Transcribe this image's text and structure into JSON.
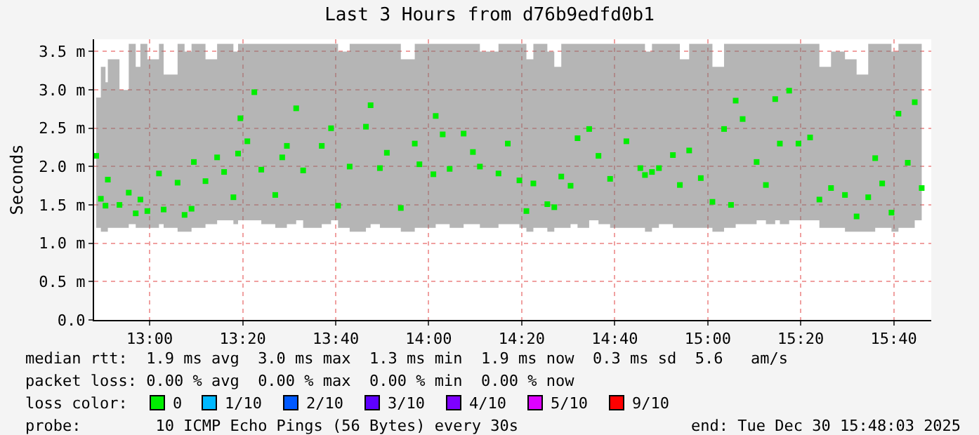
{
  "chart_data": {
    "type": "scatter",
    "title": "Last 3 Hours from d76b9edfd0b1",
    "ylabel": "Seconds",
    "legend_title": "loss color:",
    "legend": "bottom",
    "grid": true,
    "marker": "square",
    "xlim": [
      "2025-12-30T12:48:03",
      "2025-12-30T15:48:03"
    ],
    "ylim": [
      0,
      3.66
    ],
    "xticks": [
      {
        "value": "2025-12-30T13:00",
        "label": "13:00"
      },
      {
        "value": "2025-12-30T13:20",
        "label": "13:20"
      },
      {
        "value": "2025-12-30T13:40",
        "label": "13:40"
      },
      {
        "value": "2025-12-30T14:00",
        "label": "14:00"
      },
      {
        "value": "2025-12-30T14:20",
        "label": "14:20"
      },
      {
        "value": "2025-12-30T14:40",
        "label": "14:40"
      },
      {
        "value": "2025-12-30T15:00",
        "label": "15:00"
      },
      {
        "value": "2025-12-30T15:20",
        "label": "15:20"
      },
      {
        "value": "2025-12-30T15:40",
        "label": "15:40"
      }
    ],
    "yticks": [
      {
        "value": 0,
        "label": "0.0"
      },
      {
        "value": 0.5,
        "label": "0.5 m"
      },
      {
        "value": 1.0,
        "label": "1.0 m"
      },
      {
        "value": 1.5,
        "label": "1.5 m"
      },
      {
        "value": 2.0,
        "label": "2.0 m"
      },
      {
        "value": 2.5,
        "label": "2.5 m"
      },
      {
        "value": 3.0,
        "label": "3.0 m"
      },
      {
        "value": 3.5,
        "label": "3.5 m"
      }
    ],
    "x": [
      "2025-12-30T12:48:30",
      "2025-12-30T12:49:30",
      "2025-12-30T12:50:30",
      "2025-12-30T12:51:00",
      "2025-12-30T12:53:30",
      "2025-12-30T12:55:30",
      "2025-12-30T12:57:00",
      "2025-12-30T12:58:00",
      "2025-12-30T12:59:30",
      "2025-12-30T13:02:00",
      "2025-12-30T13:03:00",
      "2025-12-30T13:06:00",
      "2025-12-30T13:07:30",
      "2025-12-30T13:09:00",
      "2025-12-30T13:09:30",
      "2025-12-30T13:12:00",
      "2025-12-30T13:14:30",
      "2025-12-30T13:16:00",
      "2025-12-30T13:18:00",
      "2025-12-30T13:19:00",
      "2025-12-30T13:19:30",
      "2025-12-30T13:21:00",
      "2025-12-30T13:22:30",
      "2025-12-30T13:24:00",
      "2025-12-30T13:27:00",
      "2025-12-30T13:28:30",
      "2025-12-30T13:29:30",
      "2025-12-30T13:31:30",
      "2025-12-30T13:33:00",
      "2025-12-30T13:37:00",
      "2025-12-30T13:39:00",
      "2025-12-30T13:40:30",
      "2025-12-30T13:43:00",
      "2025-12-30T13:46:30",
      "2025-12-30T13:47:30",
      "2025-12-30T13:49:30",
      "2025-12-30T13:51:00",
      "2025-12-30T13:54:00",
      "2025-12-30T13:57:00",
      "2025-12-30T13:58:00",
      "2025-12-30T14:01:00",
      "2025-12-30T14:01:30",
      "2025-12-30T14:03:00",
      "2025-12-30T14:04:30",
      "2025-12-30T14:07:30",
      "2025-12-30T14:09:30",
      "2025-12-30T14:11:00",
      "2025-12-30T14:15:00",
      "2025-12-30T14:17:00",
      "2025-12-30T14:19:30",
      "2025-12-30T14:21:00",
      "2025-12-30T14:22:30",
      "2025-12-30T14:25:30",
      "2025-12-30T14:27:00",
      "2025-12-30T14:28:30",
      "2025-12-30T14:30:30",
      "2025-12-30T14:32:00",
      "2025-12-30T14:34:30",
      "2025-12-30T14:36:30",
      "2025-12-30T14:39:00",
      "2025-12-30T14:42:30",
      "2025-12-30T14:45:30",
      "2025-12-30T14:46:30",
      "2025-12-30T14:48:00",
      "2025-12-30T14:49:30",
      "2025-12-30T14:52:30",
      "2025-12-30T14:54:00",
      "2025-12-30T14:56:00",
      "2025-12-30T14:58:30",
      "2025-12-30T15:01:00",
      "2025-12-30T15:03:30",
      "2025-12-30T15:05:00",
      "2025-12-30T15:06:00",
      "2025-12-30T15:07:30",
      "2025-12-30T15:10:30",
      "2025-12-30T15:12:30",
      "2025-12-30T15:14:30",
      "2025-12-30T15:15:30",
      "2025-12-30T15:17:30",
      "2025-12-30T15:19:30",
      "2025-12-30T15:22:00",
      "2025-12-30T15:24:00",
      "2025-12-30T15:26:30",
      "2025-12-30T15:29:30",
      "2025-12-30T15:32:00",
      "2025-12-30T15:34:30",
      "2025-12-30T15:36:00",
      "2025-12-30T15:37:30",
      "2025-12-30T15:39:30",
      "2025-12-30T15:41:00",
      "2025-12-30T15:43:00",
      "2025-12-30T15:44:30",
      "2025-12-30T15:46:00"
    ],
    "series": [
      {
        "name": "0",
        "color": "#00ee00",
        "values": [
          2.14,
          1.58,
          1.49,
          1.83,
          1.5,
          1.66,
          1.39,
          1.57,
          1.42,
          1.91,
          1.44,
          1.79,
          1.37,
          1.45,
          2.06,
          1.81,
          2.12,
          1.93,
          1.6,
          2.17,
          2.63,
          2.33,
          2.97,
          1.96,
          1.63,
          2.12,
          2.27,
          2.76,
          1.95,
          2.27,
          2.5,
          1.49,
          2.0,
          2.52,
          2.8,
          1.98,
          2.18,
          1.46,
          2.3,
          2.03,
          1.9,
          2.66,
          2.42,
          1.97,
          2.43,
          2.19,
          2.0,
          1.91,
          2.3,
          1.82,
          1.42,
          1.78,
          1.51,
          1.47,
          1.87,
          1.75,
          2.37,
          2.49,
          2.14,
          1.84,
          2.33,
          1.98,
          1.89,
          1.93,
          1.98,
          2.15,
          1.76,
          2.21,
          1.85,
          1.54,
          2.49,
          1.5,
          2.86,
          2.62,
          2.06,
          1.76,
          2.88,
          2.3,
          2.99,
          2.3,
          2.38,
          1.57,
          1.72,
          1.63,
          1.35,
          1.6,
          2.11,
          1.78,
          1.4,
          2.69,
          2.05,
          2.84,
          1.72
        ],
        "lower": [
          1.2,
          1.15,
          1.15,
          1.2,
          1.2,
          1.25,
          1.2,
          1.2,
          1.2,
          1.25,
          1.2,
          1.15,
          1.15,
          1.2,
          1.2,
          1.25,
          1.3,
          1.3,
          1.25,
          1.3,
          1.3,
          1.3,
          1.3,
          1.25,
          1.2,
          1.2,
          1.25,
          1.3,
          1.2,
          1.25,
          1.3,
          1.2,
          1.15,
          1.2,
          1.25,
          1.2,
          1.2,
          1.15,
          1.2,
          1.2,
          1.2,
          1.25,
          1.25,
          1.2,
          1.25,
          1.25,
          1.2,
          1.25,
          1.25,
          1.2,
          1.15,
          1.2,
          1.15,
          1.2,
          1.2,
          1.25,
          1.2,
          1.3,
          1.25,
          1.2,
          1.2,
          1.2,
          1.15,
          1.2,
          1.25,
          1.2,
          1.2,
          1.2,
          1.2,
          1.15,
          1.2,
          1.2,
          1.25,
          1.25,
          1.3,
          1.25,
          1.3,
          1.25,
          1.3,
          1.3,
          1.3,
          1.2,
          1.2,
          1.15,
          1.15,
          1.15,
          1.2,
          1.2,
          1.15,
          1.2,
          1.2,
          1.3,
          1.25
        ],
        "upper": [
          2.9,
          3.3,
          3.1,
          3.4,
          3.0,
          3.6,
          3.3,
          3.6,
          3.4,
          3.6,
          3.2,
          3.6,
          3.5,
          3.6,
          3.6,
          3.4,
          3.6,
          3.6,
          3.5,
          3.6,
          3.6,
          3.6,
          3.6,
          3.6,
          3.6,
          3.6,
          3.6,
          3.6,
          3.6,
          3.6,
          3.6,
          3.5,
          3.6,
          3.6,
          3.6,
          3.6,
          3.6,
          3.4,
          3.6,
          3.6,
          3.6,
          3.6,
          3.6,
          3.6,
          3.6,
          3.6,
          3.5,
          3.6,
          3.6,
          3.6,
          3.4,
          3.6,
          3.5,
          3.3,
          3.6,
          3.6,
          3.6,
          3.6,
          3.6,
          3.6,
          3.6,
          3.6,
          3.5,
          3.6,
          3.6,
          3.6,
          3.4,
          3.6,
          3.6,
          3.3,
          3.6,
          3.6,
          3.6,
          3.6,
          3.6,
          3.6,
          3.6,
          3.6,
          3.6,
          3.6,
          3.6,
          3.3,
          3.5,
          3.4,
          3.2,
          3.6,
          3.6,
          3.6,
          3.5,
          3.6,
          3.6,
          3.6,
          3.3
        ]
      },
      {
        "name": "1/10",
        "color": "#00b8ff",
        "values": [
          null,
          null,
          null,
          null,
          null,
          null,
          null,
          null,
          null,
          null,
          null,
          null,
          null,
          null,
          null,
          null,
          null,
          null,
          null,
          null,
          null,
          null,
          null,
          null,
          null,
          null,
          null,
          null,
          null,
          null,
          null,
          null,
          null,
          null,
          null,
          null,
          null,
          null,
          null,
          null,
          null,
          null,
          null,
          null,
          null,
          null,
          null,
          null,
          null,
          null,
          null,
          null,
          null,
          null,
          null,
          null,
          null,
          null,
          null,
          null,
          null,
          null,
          null,
          null,
          null,
          null,
          null,
          null,
          null,
          null,
          null,
          null,
          null,
          null,
          null,
          null,
          null,
          null,
          null,
          null,
          null,
          null,
          null,
          null,
          null,
          null,
          null,
          null,
          null,
          null,
          null,
          null,
          null
        ]
      },
      {
        "name": "2/10",
        "color": "#0059ff",
        "values": [
          null,
          null,
          null,
          null,
          null,
          null,
          null,
          null,
          null,
          null,
          null,
          null,
          null,
          null,
          null,
          null,
          null,
          null,
          null,
          null,
          null,
          null,
          null,
          null,
          null,
          null,
          null,
          null,
          null,
          null,
          null,
          null,
          null,
          null,
          null,
          null,
          null,
          null,
          null,
          null,
          null,
          null,
          null,
          null,
          null,
          null,
          null,
          null,
          null,
          null,
          null,
          null,
          null,
          null,
          null,
          null,
          null,
          null,
          null,
          null,
          null,
          null,
          null,
          null,
          null,
          null,
          null,
          null,
          null,
          null,
          null,
          null,
          null,
          null,
          null,
          null,
          null,
          null,
          null,
          null,
          null,
          null,
          null,
          null,
          null,
          null,
          null,
          null,
          null,
          null,
          null,
          null,
          null
        ]
      },
      {
        "name": "3/10",
        "color": "#5e00ff",
        "values": [
          null,
          null,
          null,
          null,
          null,
          null,
          null,
          null,
          null,
          null,
          null,
          null,
          null,
          null,
          null,
          null,
          null,
          null,
          null,
          null,
          null,
          null,
          null,
          null,
          null,
          null,
          null,
          null,
          null,
          null,
          null,
          null,
          null,
          null,
          null,
          null,
          null,
          null,
          null,
          null,
          null,
          null,
          null,
          null,
          null,
          null,
          null,
          null,
          null,
          null,
          null,
          null,
          null,
          null,
          null,
          null,
          null,
          null,
          null,
          null,
          null,
          null,
          null,
          null,
          null,
          null,
          null,
          null,
          null,
          null,
          null,
          null,
          null,
          null,
          null,
          null,
          null,
          null,
          null,
          null,
          null,
          null,
          null,
          null,
          null,
          null,
          null,
          null,
          null,
          null,
          null,
          null,
          null
        ]
      },
      {
        "name": "4/10",
        "color": "#7e00ff",
        "values": [
          null,
          null,
          null,
          null,
          null,
          null,
          null,
          null,
          null,
          null,
          null,
          null,
          null,
          null,
          null,
          null,
          null,
          null,
          null,
          null,
          null,
          null,
          null,
          null,
          null,
          null,
          null,
          null,
          null,
          null,
          null,
          null,
          null,
          null,
          null,
          null,
          null,
          null,
          null,
          null,
          null,
          null,
          null,
          null,
          null,
          null,
          null,
          null,
          null,
          null,
          null,
          null,
          null,
          null,
          null,
          null,
          null,
          null,
          null,
          null,
          null,
          null,
          null,
          null,
          null,
          null,
          null,
          null,
          null,
          null,
          null,
          null,
          null,
          null,
          null,
          null,
          null,
          null,
          null,
          null,
          null,
          null,
          null,
          null,
          null,
          null,
          null,
          null,
          null,
          null,
          null,
          null,
          null
        ]
      },
      {
        "name": "5/10",
        "color": "#dd00ff",
        "values": [
          null,
          null,
          null,
          null,
          null,
          null,
          null,
          null,
          null,
          null,
          null,
          null,
          null,
          null,
          null,
          null,
          null,
          null,
          null,
          null,
          null,
          null,
          null,
          null,
          null,
          null,
          null,
          null,
          null,
          null,
          null,
          null,
          null,
          null,
          null,
          null,
          null,
          null,
          null,
          null,
          null,
          null,
          null,
          null,
          null,
          null,
          null,
          null,
          null,
          null,
          null,
          null,
          null,
          null,
          null,
          null,
          null,
          null,
          null,
          null,
          null,
          null,
          null,
          null,
          null,
          null,
          null,
          null,
          null,
          null,
          null,
          null,
          null,
          null,
          null,
          null,
          null,
          null,
          null,
          null,
          null,
          null,
          null,
          null,
          null,
          null,
          null,
          null,
          null,
          null,
          null,
          null,
          null
        ]
      },
      {
        "name": "9/10",
        "color": "#ff0000",
        "values": [
          null,
          null,
          null,
          null,
          null,
          null,
          null,
          null,
          null,
          null,
          null,
          null,
          null,
          null,
          null,
          null,
          null,
          null,
          null,
          null,
          null,
          null,
          null,
          null,
          null,
          null,
          null,
          null,
          null,
          null,
          null,
          null,
          null,
          null,
          null,
          null,
          null,
          null,
          null,
          null,
          null,
          null,
          null,
          null,
          null,
          null,
          null,
          null,
          null,
          null,
          null,
          null,
          null,
          null,
          null,
          null,
          null,
          null,
          null,
          null,
          null,
          null,
          null,
          null,
          null,
          null,
          null,
          null,
          null,
          null,
          null,
          null,
          null,
          null,
          null,
          null,
          null,
          null,
          null,
          null,
          null,
          null,
          null,
          null,
          null,
          null,
          null,
          null,
          null,
          null,
          null,
          null,
          null
        ]
      }
    ],
    "annotations": [
      "median rtt:  1.9 ms avg  3.0 ms max  1.3 ms min  1.9 ms now  0.3 ms sd  5.6   am/s",
      "packet loss: 0.00 % avg  0.00 % max  0.00 % min  0.00 % now",
      "probe:        10 ICMP Echo Pings (56 Bytes) every 30s",
      "end: Tue Dec 30 15:48:03 2025"
    ]
  }
}
